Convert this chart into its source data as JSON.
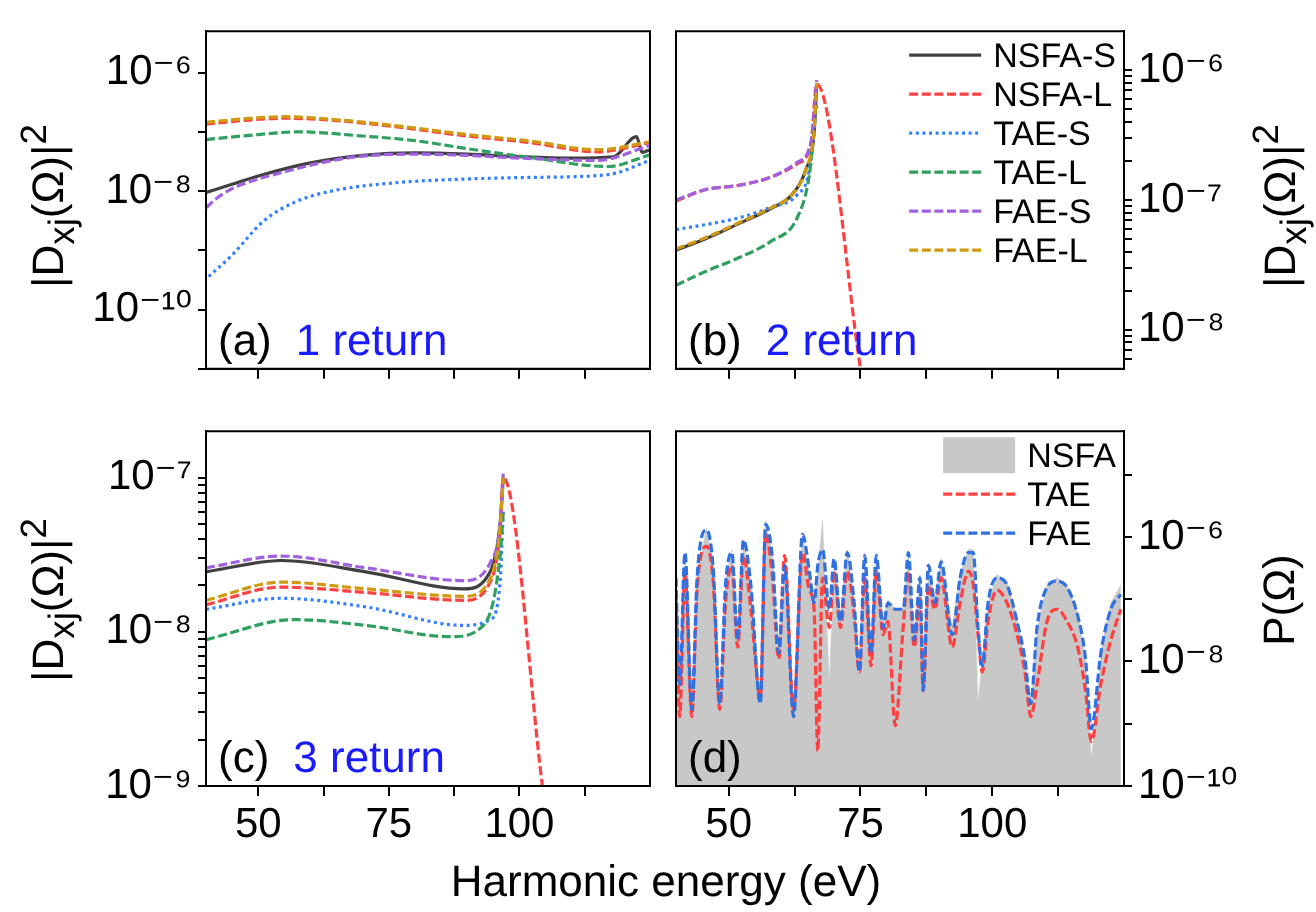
{
  "chart_data": [
    {
      "type": "line",
      "ylabel": "|D$_{xj}$(Ω)|$^{2}$",
      "annotations": [
        "(a)",
        "1 return"
      ],
      "tick_labels": "y",
      "log": "y",
      "xlim": [
        40,
        125
      ],
      "xticks": [
        50,
        {
          "value": 62.5,
          "label": null
        },
        75,
        {
          "value": 87.5,
          "label": null
        },
        100,
        {
          "value": 112.5,
          "label": null
        }
      ],
      "ylim": [
        1e-11,
        5e-06
      ],
      "yticks": [
        {
          "value": 1e-11,
          "label": null
        },
        {
          "value": 1e-10,
          "label": "10⁻¹⁰"
        },
        {
          "value": 1e-09,
          "label": null
        },
        {
          "value": 1e-08,
          "label": "10⁻⁸"
        },
        {
          "value": 1e-07,
          "label": null
        },
        {
          "value": 1e-06,
          "label": "10⁻⁶"
        }
      ],
      "series": [
        {
          "color": "#404040",
          "line_style": "solid",
          "x": [
            40,
            45,
            50,
            60,
            70,
            80,
            90,
            100,
            110,
            118,
            122.4,
            123.5,
            125
          ],
          "values": [
            9.5e-09,
            1.3e-08,
            1.8e-08,
            3e-08,
            4e-08,
            4.4e-08,
            4.2e-08,
            3.8e-08,
            3.6e-08,
            3.8e-08,
            8.3e-08,
            4.5e-08,
            5e-08
          ]
        },
        {
          "color": "#ff4040",
          "line_style": "dashed",
          "x": [
            40,
            47,
            55,
            65,
            77,
            90,
            102,
            115,
            125
          ],
          "values": [
            1.35e-07,
            1.55e-07,
            1.7e-07,
            1.55e-07,
            1.2e-07,
            8.5e-08,
            6.6e-08,
            4.6e-08,
            6.6e-08
          ]
        },
        {
          "color": "#3080ff",
          "line_style": "dotted",
          "x": [
            40.5,
            45,
            51,
            57,
            64,
            77,
            90,
            102,
            117,
            125
          ],
          "values": [
            3.6e-10,
            8.3e-10,
            3.1e-09,
            6.5e-09,
            1e-08,
            1.4e-08,
            1.6e-08,
            1.7e-08,
            1.9e-08,
            3.3e-08
          ]
        },
        {
          "color": "#30a060",
          "line_style": "dashed",
          "x": [
            40,
            50,
            57.6,
            70,
            80,
            90,
            102,
            117,
            125
          ],
          "values": [
            7.4e-08,
            9e-08,
            1e-07,
            8.5e-08,
            7.1e-08,
            5.2e-08,
            3.7e-08,
            2.6e-08,
            4.1e-08
          ]
        },
        {
          "color": "#a060e0",
          "line_style": "dashed",
          "x": [
            40,
            42,
            45,
            50,
            54,
            62,
            70,
            80,
            90,
            100,
            115,
            125
          ],
          "values": [
            5.2e-09,
            7.5e-09,
            1.1e-08,
            1.6e-08,
            2e-08,
            3e-08,
            3.9e-08,
            4.2e-08,
            4e-08,
            3.6e-08,
            3.3e-08,
            5.9e-08
          ]
        },
        {
          "color": "#d09a10",
          "line_style": "dashed",
          "x": [
            40,
            47,
            55,
            65,
            77,
            90,
            102,
            115,
            125
          ],
          "values": [
            1.45e-07,
            1.65e-07,
            1.8e-07,
            1.6e-07,
            1.25e-07,
            9e-08,
            7e-08,
            5e-08,
            6.8e-08
          ]
        }
      ]
    },
    {
      "type": "line",
      "ylabel": "|D$_{xj}$(Ω)|$^{2}$",
      "annotations": [
        "(b)",
        "2 return"
      ],
      "tick_labels": "y",
      "log": "y",
      "legend": "top right",
      "xlim": [
        40,
        125
      ],
      "xticks": [
        50,
        {
          "value": 62.5,
          "label": null
        },
        75,
        {
          "value": 87.5,
          "label": null
        },
        100,
        {
          "value": 112.5,
          "label": null
        }
      ],
      "ylim": [
        5e-09,
        2e-06
      ],
      "yticks": [
        {
          "value": 6e-09,
          "label": null
        },
        {
          "value": 7e-09,
          "label": null
        },
        {
          "value": 8e-09,
          "label": null
        },
        {
          "value": 9e-09,
          "label": null
        },
        {
          "value": 1e-08,
          "label": "10⁻⁸"
        },
        {
          "value": 2e-08,
          "label": null
        },
        {
          "value": 3e-08,
          "label": null
        },
        {
          "value": 4e-08,
          "label": null
        },
        {
          "value": 5e-08,
          "label": null
        },
        {
          "value": 6e-08,
          "label": null
        },
        {
          "value": 7e-08,
          "label": null
        },
        {
          "value": 8e-08,
          "label": null
        },
        {
          "value": 9e-08,
          "label": null
        },
        {
          "value": 1e-07,
          "label": "10⁻⁷"
        },
        {
          "value": 2e-07,
          "label": null
        },
        {
          "value": 3e-07,
          "label": null
        },
        {
          "value": 4e-07,
          "label": null
        },
        {
          "value": 5e-07,
          "label": null
        },
        {
          "value": 6e-07,
          "label": null
        },
        {
          "value": 7e-07,
          "label": null
        },
        {
          "value": 8e-07,
          "label": null
        },
        {
          "value": 9e-07,
          "label": null
        },
        {
          "value": 1e-06,
          "label": "10⁻⁶"
        }
      ],
      "series": [
        {
          "name": "NSFA-S",
          "color": "#404040",
          "line_style": "solid",
          "x": [
            40,
            45.5,
            52,
            58,
            62,
            64.6,
            66.2,
            66.7
          ],
          "values": [
            4.1e-08,
            5e-08,
            6.6e-08,
            8.6e-08,
            1.1e-07,
            1.7e-07,
            3.3e-07,
            7.8e-07
          ]
        },
        {
          "name": "NSFA-L",
          "color": "#ff4040",
          "line_style": "dashed",
          "x": [
            40,
            45.5,
            52,
            58,
            63,
            65.6,
            66.7,
            75
          ],
          "values": [
            9.8e-08,
            1.2e-07,
            1.3e-07,
            1.5e-07,
            1.9e-07,
            2.7e-07,
            7.8e-07,
            5e-09
          ]
        },
        {
          "name": "TAE-S",
          "color": "#3080ff",
          "line_style": "dotted",
          "x": [
            40,
            52,
            58,
            63,
            65.3,
            66.7
          ],
          "values": [
            5.9e-08,
            7.3e-08,
            8.8e-08,
            1.1e-07,
            1.7e-07,
            5.6e-07
          ]
        },
        {
          "name": "TAE-L",
          "color": "#30a060",
          "line_style": "dashed",
          "x": [
            40,
            45.5,
            52,
            58,
            63,
            65.3,
            65.9
          ],
          "values": [
            2.2e-08,
            2.8e-08,
            3.6e-08,
            4.8e-08,
            7.3e-08,
            1.55e-07,
            2.6e-07
          ]
        },
        {
          "name": "FAE-S",
          "color": "#a060e0",
          "line_style": "dashed",
          "x": [
            40,
            45.5,
            52,
            58,
            63,
            65.6,
            66.7
          ],
          "values": [
            1e-07,
            1.2e-07,
            1.3e-07,
            1.5e-07,
            1.95e-07,
            2.8e-07,
            8.4e-07
          ]
        },
        {
          "name": "FAE-L",
          "color": "#d09a10",
          "line_style": "dashed",
          "x": [
            40,
            45.5,
            52,
            58,
            62,
            64.6,
            66.2,
            66.7
          ],
          "values": [
            4.2e-08,
            5.1e-08,
            6.7e-08,
            8.7e-08,
            1.1e-07,
            1.7e-07,
            3.4e-07,
            8e-07
          ]
        }
      ]
    },
    {
      "type": "line",
      "ylabel": "|D$_{xj}$(Ω)|$^{2}$",
      "xlabel": "Harmonic energy (eV)",
      "annotations": [
        "(c)",
        "3 return"
      ],
      "log": "y",
      "xlim": [
        40,
        125
      ],
      "xticks": [
        50,
        {
          "value": 62.5,
          "label": null
        },
        75,
        {
          "value": 87.5,
          "label": null
        },
        100,
        {
          "value": 112.5,
          "label": null
        }
      ],
      "ylim": [
        1e-09,
        2e-07
      ],
      "yticks": [
        {
          "value": 1e-09,
          "label": "10⁻⁹"
        },
        {
          "value": 2e-09,
          "label": null
        },
        {
          "value": 3e-09,
          "label": null
        },
        {
          "value": 4e-09,
          "label": null
        },
        {
          "value": 5e-09,
          "label": null
        },
        {
          "value": 6e-09,
          "label": null
        },
        {
          "value": 7e-09,
          "label": null
        },
        {
          "value": 8e-09,
          "label": null
        },
        {
          "value": 9e-09,
          "label": null
        },
        {
          "value": 1e-08,
          "label": "10⁻⁸"
        },
        {
          "value": 2e-08,
          "label": null
        },
        {
          "value": 3e-08,
          "label": null
        },
        {
          "value": 4e-08,
          "label": null
        },
        {
          "value": 5e-08,
          "label": null
        },
        {
          "value": 6e-08,
          "label": null
        },
        {
          "value": 7e-08,
          "label": null
        },
        {
          "value": 8e-08,
          "label": null
        },
        {
          "value": 9e-08,
          "label": null
        },
        {
          "value": 1e-07,
          "label": "10⁻⁷"
        }
      ],
      "series": [
        {
          "color": "#404040",
          "line_style": "solid",
          "x": [
            40,
            54.4,
            70.6,
            89.4,
            94.4,
            96.3,
            96.9
          ],
          "values": [
            2.45e-08,
            2.9e-08,
            2.45e-08,
            1.9e-08,
            2.45e-08,
            5e-08,
            1e-07
          ]
        },
        {
          "color": "#ff4040",
          "line_style": "dashed",
          "x": [
            40,
            54.4,
            70.6,
            89.4,
            94.4,
            96.3,
            96.9,
            104.4
          ],
          "values": [
            1.5e-08,
            1.95e-08,
            1.8e-08,
            1.6e-08,
            2.1e-08,
            4.5e-08,
            1e-07,
            1e-09
          ]
        },
        {
          "color": "#3080ff",
          "line_style": "dotted",
          "x": [
            40,
            54.4,
            70.6,
            89.4,
            94.4,
            96.3,
            96.9
          ],
          "values": [
            1.4e-08,
            1.65e-08,
            1.45e-08,
            1.1e-08,
            1.2e-08,
            2.1e-08,
            6e-08
          ]
        },
        {
          "color": "#30a060",
          "line_style": "dashed",
          "x": [
            40,
            56.9,
            70.6,
            86.9,
            93.1,
            96.3,
            96.9
          ],
          "values": [
            8.9e-09,
            1.2e-08,
            1.1e-08,
            9.3e-09,
            1.1e-08,
            3.1e-08,
            6e-08
          ]
        },
        {
          "color": "#a060e0",
          "line_style": "dashed",
          "x": [
            40,
            54.4,
            70.6,
            89.4,
            94.4,
            96.3,
            96.9
          ],
          "values": [
            2.6e-08,
            3.1e-08,
            2.6e-08,
            2.15e-08,
            2.8e-08,
            5e-08,
            1.06e-07
          ]
        },
        {
          "color": "#d09a10",
          "line_style": "dashed",
          "x": [
            40,
            54.4,
            70.6,
            89.4,
            94.4,
            96.3,
            96.9
          ],
          "values": [
            1.6e-08,
            2.1e-08,
            1.9e-08,
            1.7e-08,
            2.2e-08,
            4.8e-08,
            1e-07
          ]
        }
      ]
    },
    {
      "type": "line",
      "ylabel": "P(Ω)",
      "annotations": [
        "(d)"
      ],
      "log": "y",
      "legend": "top right",
      "xlim": [
        40,
        125
      ],
      "xticks": [
        50,
        {
          "value": 62.5,
          "label": null
        },
        75,
        {
          "value": 87.5,
          "label": null
        },
        100,
        {
          "value": 112.5,
          "label": null
        }
      ],
      "ylim": [
        1e-10,
        5e-05
      ],
      "yticks": [
        {
          "value": 1e-10,
          "label": "10⁻¹⁰"
        },
        {
          "value": 1e-09,
          "label": null
        },
        {
          "value": 1e-08,
          "label": "10⁻⁸"
        },
        {
          "value": 1e-07,
          "label": null
        },
        {
          "value": 1e-06,
          "label": "10⁻⁶"
        },
        {
          "value": 1e-05,
          "label": null
        }
      ],
      "x": [
        40,
        40.7,
        41.7,
        43,
        44,
        45.8,
        47.1,
        48.3,
        49.4,
        50.6,
        51.7,
        52.8,
        54.2,
        56,
        57,
        58.3,
        59.5,
        60.6,
        62.3,
        64,
        65.3,
        66.2,
        66.9,
        67.8,
        69.1,
        70,
        71.2,
        72.5,
        73.8,
        74.8,
        75.8,
        77,
        78,
        79.3,
        80.2,
        81.6,
        83.1,
        84.1,
        85.2,
        86.3,
        86.9,
        87.9,
        89.1,
        90.3,
        92.4,
        93.9,
        95.5,
        96.4,
        97.3,
        98.1,
        99.2,
        100.9,
        102.8,
        104.7,
        106.2,
        107.3,
        108.5,
        110.4,
        112.3,
        114.2,
        116.2,
        117.7,
        118.8,
        120.6,
        122.5,
        124.4
      ],
      "series": [
        {
          "name": "NSFA",
          "type": "area",
          "color": "#c8c8c8",
          "values": [
            2.8e-07,
            3.4e-09,
            5e-07,
            1.3e-09,
            2.5e-07,
            1.4e-06,
            3.1e-07,
            1.7e-09,
            1.95e-07,
            6.3e-07,
            2.7e-08,
            8.9e-07,
            1.95e-07,
            2.1e-09,
            1.8e-06,
            5e-07,
            1.7e-08,
            3.5e-07,
            1.3e-09,
            1.1e-06,
            2.8e-07,
            1.1e-07,
            2.8e-07,
            1.8e-06,
            4.3e-09,
            4e-07,
            5.5e-08,
            6.3e-07,
            9.8e-08,
            7.6e-09,
            5.6e-07,
            1.7e-08,
            5.6e-07,
            4.4e-08,
            9.8e-08,
            6.9e-08,
            6.9e-08,
            5.6e-07,
            2.7e-08,
            2.5e-07,
            3.8e-09,
            3.5e-07,
            9.8e-08,
            4.5e-07,
            3.5e-08,
            2.5e-07,
            6.3e-07,
            6.3e-07,
            2.1e-09,
            1.1e-08,
            8.7e-08,
            2.5e-07,
            1.95e-07,
            4.9e-08,
            1.1e-08,
            2.1e-09,
            3.5e-08,
            1.7e-07,
            2.2e-07,
            1.7e-07,
            6.1e-08,
            1.1e-08,
            2.6e-10,
            1.45e-08,
            8.7e-08,
            1.7e-07
          ]
        },
        {
          "name": "TAE",
          "color": "#ff4040",
          "line_style": "dashed",
          "values": [
            1.1e-07,
            1.3e-09,
            2.8e-07,
            1.3e-09,
            1.4e-07,
            7.1e-07,
            1.7e-07,
            1.7e-09,
            8.7e-08,
            3.5e-07,
            1.7e-08,
            5e-07,
            6.9e-08,
            2.7e-09,
            1.1e-06,
            2.2e-07,
            1.1e-08,
            5e-07,
            1.7e-09,
            5.6e-07,
            1.4e-07,
            6.9e-08,
            3.7e-10,
            2.2e-07,
            3.5e-08,
            2.8e-07,
            3.5e-08,
            2.8e-07,
            5.5e-08,
            6.8e-09,
            2.2e-07,
            8.5e-09,
            2.8e-07,
            2.7e-08,
            4.4e-08,
            9.3e-10,
            3.5e-08,
            2.8e-07,
            1.7e-08,
            1.1e-07,
            3.4e-09,
            1.7e-07,
            6.9e-08,
            2.2e-07,
            1.7e-08,
            8.7e-08,
            2.8e-07,
            1.7e-07,
            2.7e-08,
            6.8e-09,
            4.4e-08,
            1.4e-07,
            8.7e-08,
            2.7e-08,
            6.8e-09,
            1.3e-09,
            4.3e-09,
            4.4e-08,
            6.9e-08,
            4.4e-08,
            1.7e-08,
            3.4e-09,
            5.2e-10,
            4.3e-09,
            2.2e-08,
            6.9e-08
          ]
        },
        {
          "name": "FAE",
          "color": "#3070e0",
          "line_style": "dashed",
          "values": [
            2.2e-07,
            4.3e-09,
            5.6e-07,
            1.7e-09,
            2.2e-07,
            1.3e-06,
            2.8e-07,
            2.1e-09,
            1.7e-07,
            5.6e-07,
            2.2e-08,
            8.9e-07,
            1.7e-07,
            2.1e-09,
            1.6e-06,
            4.5e-07,
            1.35e-08,
            3.5e-07,
            1.3e-09,
            1.1e-06,
            2.8e-07,
            8.7e-08,
            3.5e-07,
            6.3e-07,
            6.9e-08,
            4.5e-07,
            4.4e-08,
            5.6e-07,
            8.7e-08,
            6.8e-09,
            5e-07,
            1.35e-08,
            5e-07,
            3.5e-08,
            8.7e-08,
            6.9e-08,
            6.9e-08,
            5.6e-07,
            2.2e-08,
            2.2e-07,
            3.4e-09,
            3.5e-07,
            8.7e-08,
            4e-07,
            2.7e-08,
            2.2e-07,
            5.6e-07,
            5.6e-07,
            3.5e-08,
            8.5e-09,
            8.7e-08,
            2.2e-07,
            1.7e-07,
            4.4e-08,
            1.1e-08,
            2.1e-09,
            3.5e-08,
            1.55e-07,
            1.95e-07,
            1.55e-07,
            5.5e-08,
            1.1e-08,
            8.3e-10,
            1.35e-08,
            6.9e-08,
            1.2e-07
          ]
        }
      ]
    }
  ]
}
